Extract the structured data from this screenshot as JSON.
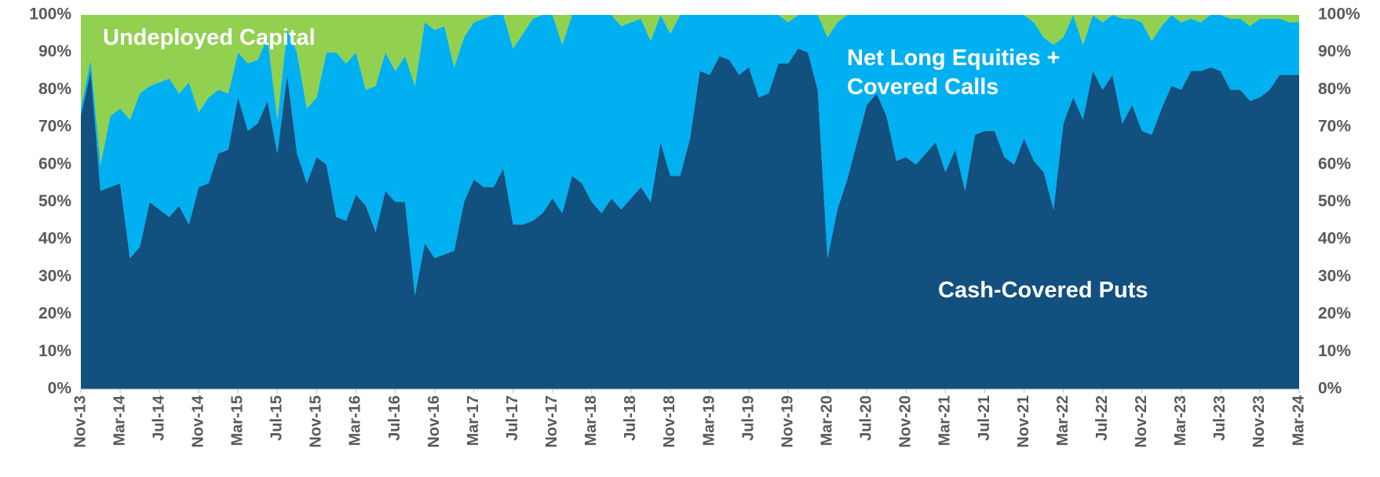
{
  "chart_data": {
    "type": "stacked_area",
    "categories": [
      "Nov-13",
      null,
      null,
      null,
      "Mar-14",
      null,
      null,
      null,
      "Jul-14",
      null,
      null,
      null,
      "Nov-14",
      null,
      null,
      null,
      "Mar-15",
      null,
      null,
      null,
      "Jul-15",
      null,
      null,
      null,
      "Nov-15",
      null,
      null,
      null,
      "Mar-16",
      null,
      null,
      null,
      "Jul-16",
      null,
      null,
      null,
      "Nov-16",
      null,
      null,
      null,
      "Mar-17",
      null,
      null,
      null,
      "Jul-17",
      null,
      null,
      null,
      "Nov-17",
      null,
      null,
      null,
      "Mar-18",
      null,
      null,
      null,
      "Jul-18",
      null,
      null,
      null,
      "Nov-18",
      null,
      null,
      null,
      "Mar-19",
      null,
      null,
      null,
      "Jul-19",
      null,
      null,
      null,
      "Nov-19",
      null,
      null,
      null,
      "Mar-20",
      null,
      null,
      null,
      "Jul-20",
      null,
      null,
      null,
      "Nov-20",
      null,
      null,
      null,
      "Mar-21",
      null,
      null,
      null,
      "Jul-21",
      null,
      null,
      null,
      "Nov-21",
      null,
      null,
      null,
      "Mar-22",
      null,
      null,
      null,
      "Jul-22",
      null,
      null,
      null,
      "Nov-22",
      null,
      null,
      null,
      "Mar-23",
      null,
      null,
      null,
      "Jul-23",
      null,
      null,
      null,
      "Nov-23",
      null,
      null,
      null,
      "Mar-24"
    ],
    "series": [
      {
        "name": "Cash-Covered Puts",
        "color": "#12507f",
        "values": [
          73,
          85,
          53,
          54,
          55,
          35,
          38,
          50,
          48,
          46,
          49,
          44,
          54,
          55,
          63,
          64,
          78,
          69,
          71,
          77,
          63,
          84,
          63,
          55,
          62,
          60,
          46,
          45,
          52,
          49,
          42,
          53,
          50,
          50,
          25,
          39,
          35,
          36,
          37,
          50,
          56,
          54,
          54,
          59,
          44,
          44,
          45,
          47,
          51,
          47,
          57,
          55,
          50,
          47,
          51,
          48,
          51,
          54,
          50,
          66,
          57,
          57,
          67,
          85,
          84,
          89,
          88,
          84,
          86,
          78,
          79,
          87,
          87,
          91,
          90,
          80,
          35,
          48,
          56,
          66,
          76,
          79,
          73,
          61,
          62,
          60,
          63,
          66,
          58,
          64,
          53,
          68,
          69,
          69,
          62,
          60,
          67,
          61,
          58,
          48,
          71,
          78,
          72,
          85,
          80,
          84,
          71,
          76,
          69,
          68,
          75,
          81,
          80,
          85,
          85,
          86,
          85,
          80,
          80,
          77,
          78,
          80,
          84,
          84,
          84
        ]
      },
      {
        "name": "Net Long Equities + Covered Calls",
        "color": "#00b0f0",
        "values": [
          2,
          3,
          7,
          19,
          20,
          37,
          41,
          31,
          34,
          37,
          30,
          38,
          20,
          23,
          17,
          15,
          12,
          18,
          17,
          17,
          9,
          12,
          27,
          20,
          16,
          30,
          44,
          42,
          38,
          31,
          39,
          37,
          35,
          39,
          56,
          59,
          61,
          61,
          49,
          44,
          42,
          45,
          46,
          41,
          47,
          51,
          54,
          53,
          49,
          45,
          43,
          45,
          50,
          53,
          49,
          49,
          47,
          45,
          43,
          34,
          38,
          43,
          33,
          15,
          16,
          11,
          12,
          16,
          14,
          22,
          21,
          13,
          11,
          9,
          10,
          20,
          59,
          50,
          44,
          34,
          24,
          21,
          27,
          39,
          38,
          40,
          37,
          34,
          42,
          36,
          47,
          32,
          31,
          31,
          38,
          40,
          33,
          37,
          36,
          44,
          23,
          22,
          20,
          15,
          18,
          16,
          28,
          23,
          29,
          25,
          22,
          19,
          18,
          14,
          13,
          14,
          15,
          19,
          19,
          20,
          21,
          19,
          15,
          14,
          14
        ]
      },
      {
        "name": "Undeployed Capital",
        "color": "#92d050",
        "values": [
          25,
          12,
          40,
          27,
          25,
          28,
          21,
          19,
          18,
          17,
          21,
          18,
          26,
          22,
          20,
          21,
          10,
          13,
          12,
          6,
          28,
          4,
          10,
          25,
          22,
          10,
          10,
          13,
          10,
          20,
          19,
          10,
          15,
          11,
          19,
          2,
          4,
          3,
          14,
          6,
          2,
          1,
          0,
          0,
          9,
          5,
          1,
          0,
          0,
          8,
          0,
          0,
          0,
          0,
          0,
          3,
          2,
          1,
          7,
          0,
          5,
          0,
          0,
          0,
          0,
          0,
          0,
          0,
          0,
          0,
          0,
          0,
          2,
          0,
          0,
          0,
          6,
          2,
          0,
          0,
          0,
          0,
          0,
          0,
          0,
          0,
          0,
          0,
          0,
          0,
          0,
          0,
          0,
          0,
          0,
          0,
          0,
          2,
          6,
          8,
          6,
          0,
          8,
          0,
          2,
          0,
          1,
          1,
          2,
          7,
          3,
          0,
          2,
          1,
          2,
          0,
          0,
          1,
          1,
          3,
          1,
          1,
          1,
          2,
          2
        ]
      }
    ],
    "ylim": [
      0,
      100
    ],
    "yticks": [
      {
        "value": 0,
        "label": "0%"
      },
      {
        "value": 10,
        "label": "10%"
      },
      {
        "value": 20,
        "label": "20%"
      },
      {
        "value": 30,
        "label": "30%"
      },
      {
        "value": 40,
        "label": "40%"
      },
      {
        "value": 50,
        "label": "50%"
      },
      {
        "value": 60,
        "label": "60%"
      },
      {
        "value": 70,
        "label": "70%"
      },
      {
        "value": 80,
        "label": "80%"
      },
      {
        "value": 90,
        "label": "90%"
      },
      {
        "value": 100,
        "label": "100%"
      }
    ],
    "y2lim": [
      0,
      100
    ],
    "y2ticks": [
      {
        "value": 0,
        "label": "0%"
      },
      {
        "value": 10,
        "label": "10%"
      },
      {
        "value": 20,
        "label": "20%"
      },
      {
        "value": 30,
        "label": "30%"
      },
      {
        "value": 40,
        "label": "40%"
      },
      {
        "value": 50,
        "label": "50%"
      },
      {
        "value": 60,
        "label": "60%"
      },
      {
        "value": 70,
        "label": "70%"
      },
      {
        "value": 80,
        "label": "80%"
      },
      {
        "value": 90,
        "label": "90%"
      },
      {
        "value": 100,
        "label": "100%"
      }
    ]
  }
}
